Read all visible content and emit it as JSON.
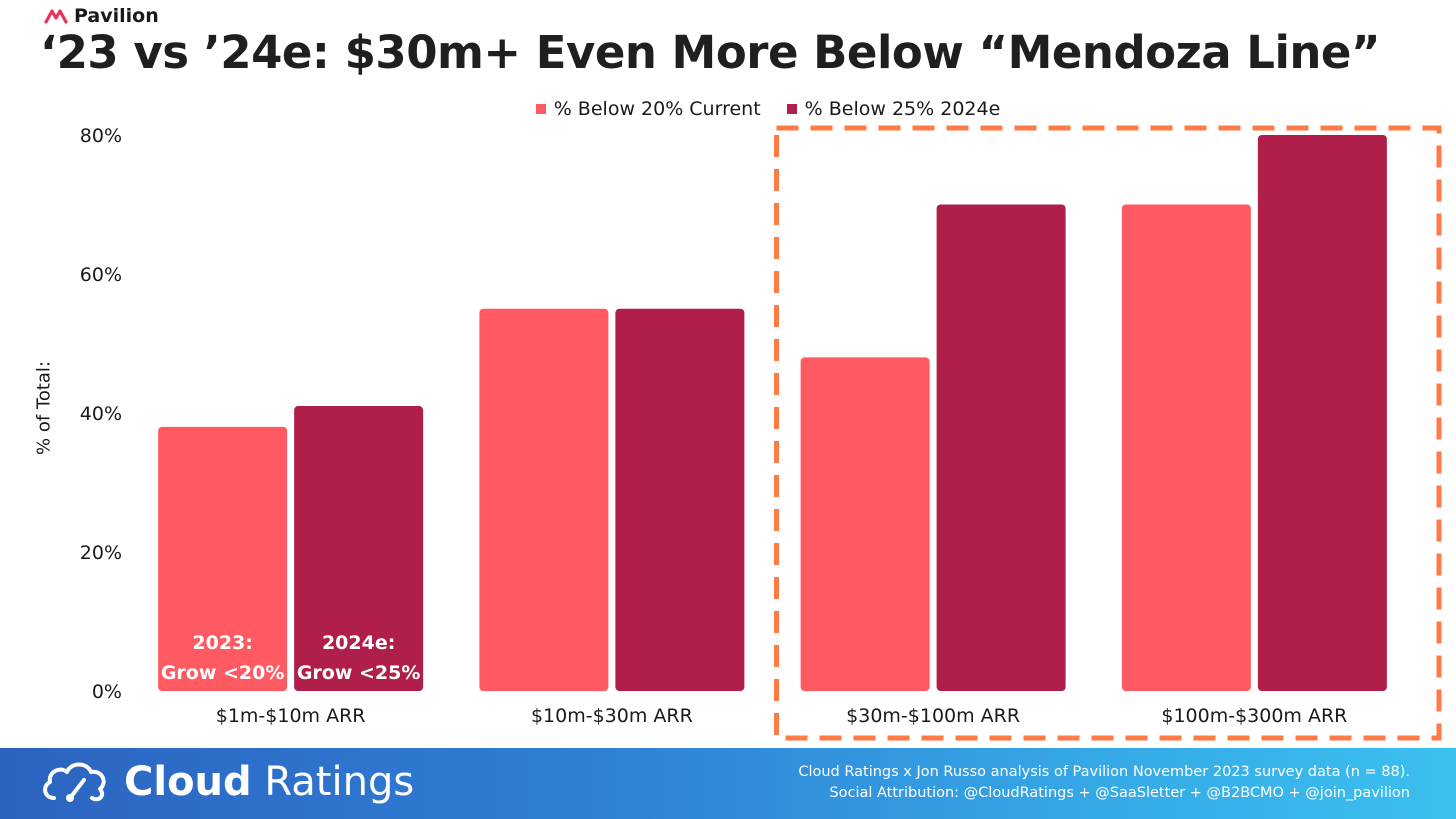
{
  "header": {
    "brand": "Pavilion",
    "title": "‘23 vs ’24e: $30m+ Even More Below “Mendoza Line”"
  },
  "colors": {
    "current": "#ff5a62",
    "estimate": "#b01e4a",
    "highlight": "#ff7a45"
  },
  "chart_data": {
    "type": "bar",
    "title": "‘23 vs ’24e: $30m+ Even More Below “Mendoza Line”",
    "ylabel": "% of Total:",
    "xlabel": "",
    "ylim": [
      0,
      80
    ],
    "y_ticks": [
      "0%",
      "20%",
      "40%",
      "60%",
      "80%"
    ],
    "categories": [
      "$1m-$10m ARR",
      "$10m-$30m ARR",
      "$30m-$100m ARR",
      "$100m-$300m ARR"
    ],
    "series": [
      {
        "name": "% Below 20% Current",
        "values": [
          38,
          55,
          48,
          70
        ]
      },
      {
        "name": "% Below 25% 2024e",
        "values": [
          41,
          55,
          70,
          80
        ]
      }
    ],
    "annotations": [
      {
        "category": "$1m-$10m ARR",
        "series": "% Below 20% Current",
        "lines": [
          "2023:",
          "Grow <20%"
        ]
      },
      {
        "category": "$1m-$10m ARR",
        "series": "% Below 25% 2024e",
        "lines": [
          "2024e:",
          "Grow <25%"
        ]
      }
    ],
    "highlight_categories": [
      "$30m-$100m ARR",
      "$100m-$300m ARR"
    ],
    "legend_position": "top",
    "grid": false
  },
  "footer": {
    "brand_bold": "Cloud",
    "brand_light": "Ratings",
    "note_line1": "Cloud Ratings x Jon Russo analysis of Pavilion November 2023 survey data (n = 88).",
    "note_line2": "Social Attribution: @CloudRatings + @SaaSletter + @B2BCMO + @join_pavilion"
  }
}
